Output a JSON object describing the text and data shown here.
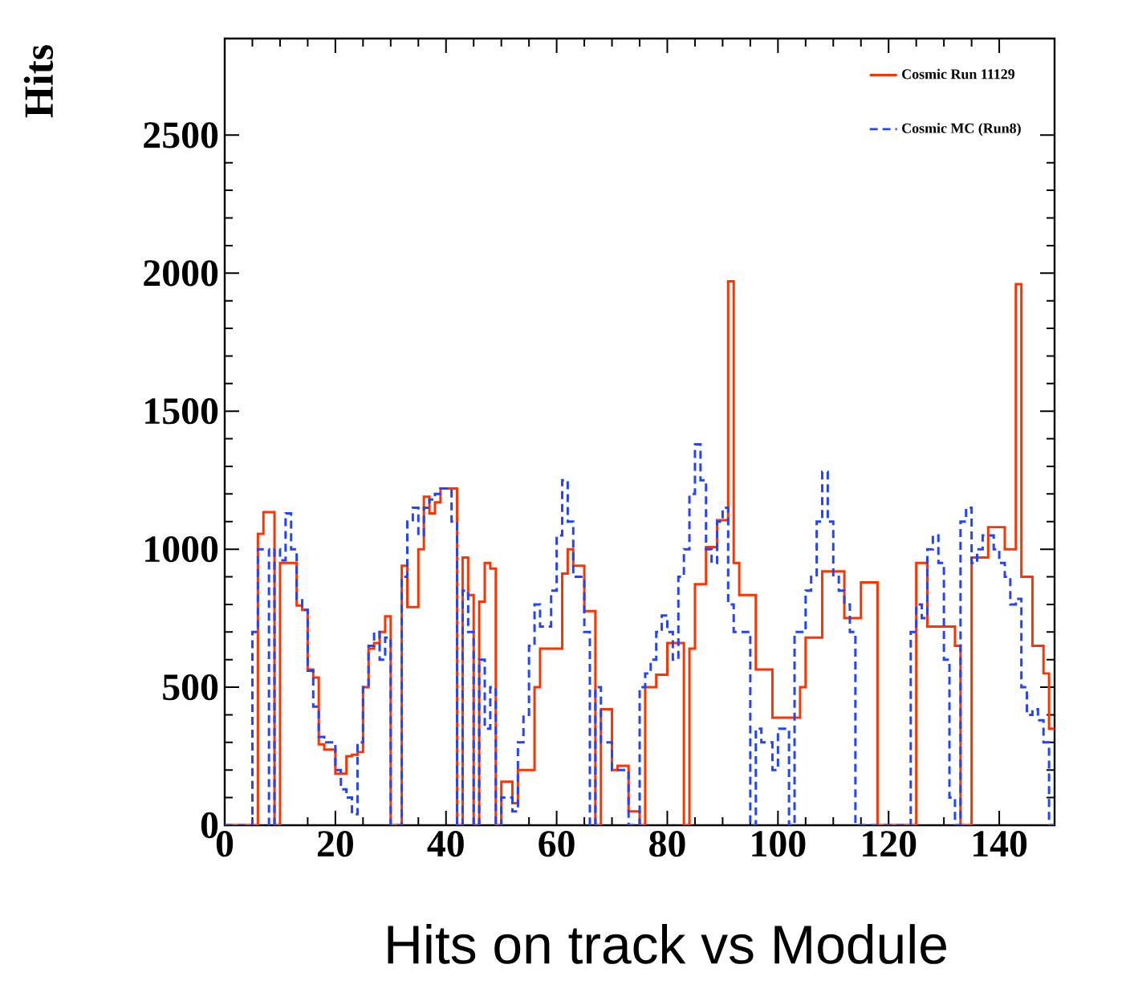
{
  "chart_data": {
    "type": "histogram",
    "title": "Hits on track vs Module",
    "ylabel": "Hits",
    "xlim": [
      0,
      150
    ],
    "ylim": [
      0,
      2850
    ],
    "xticks": [
      0,
      20,
      40,
      60,
      80,
      100,
      120,
      140
    ],
    "yticks": [
      0,
      500,
      1000,
      1500,
      2000,
      2500
    ],
    "grid": false,
    "legend": "top right",
    "bins": [
      0,
      1,
      2,
      3,
      4,
      5,
      6,
      7,
      8,
      9,
      10,
      11,
      12,
      13,
      14,
      15,
      16,
      17,
      18,
      19,
      20,
      21,
      22,
      23,
      24,
      25,
      26,
      27,
      28,
      29,
      30,
      31,
      32,
      33,
      34,
      35,
      36,
      37,
      38,
      39,
      40,
      41,
      42,
      43,
      44,
      45,
      46,
      47,
      48,
      49,
      50,
      51,
      52,
      53,
      54,
      55,
      56,
      57,
      58,
      59,
      60,
      61,
      62,
      63,
      64,
      65,
      66,
      67,
      68,
      69,
      70,
      71,
      72,
      73,
      74,
      75,
      76,
      77,
      78,
      79,
      80,
      81,
      82,
      83,
      84,
      85,
      86,
      87,
      88,
      89,
      90,
      91,
      92,
      93,
      94,
      95,
      96,
      97,
      98,
      99,
      100,
      101,
      102,
      103,
      104,
      105,
      106,
      107,
      108,
      109,
      110,
      111,
      112,
      113,
      114,
      115,
      116,
      117,
      118,
      119,
      120,
      121,
      122,
      123,
      124,
      125,
      126,
      127,
      128,
      129,
      130,
      131,
      132,
      133,
      134,
      135,
      136,
      137,
      138,
      139,
      140,
      141,
      142,
      143,
      144,
      145,
      146,
      147,
      148,
      149,
      150
    ],
    "series": [
      {
        "name": "Cosmic Run 11129",
        "color": "#ff3300",
        "line_style": "solid",
        "values": [
          0,
          0,
          0,
          0,
          0,
          0,
          1056,
          1134,
          1134,
          0,
          950,
          950,
          950,
          796,
          780,
          564,
          535,
          293,
          274,
          274,
          187,
          187,
          250,
          255,
          265,
          500,
          640,
          660,
          700,
          757,
          0,
          0,
          940,
          790,
          790,
          1000,
          1190,
          1130,
          1170,
          1220,
          1220,
          1220,
          0,
          970,
          834,
          0,
          810,
          950,
          930,
          0,
          158,
          158,
          80,
          200,
          200,
          200,
          500,
          640,
          640,
          640,
          640,
          912,
          1000,
          940,
          940,
          776,
          776,
          0,
          420,
          420,
          200,
          215,
          215,
          50,
          50,
          0,
          500,
          500,
          545,
          545,
          660,
          660,
          660,
          0,
          640,
          873,
          873,
          1008,
          1008,
          1105,
          1105,
          1970,
          950,
          834,
          834,
          834,
          564,
          564,
          564,
          390,
          390,
          390,
          390,
          390,
          500,
          680,
          680,
          680,
          920,
          920,
          920,
          920,
          750,
          750,
          750,
          880,
          880,
          880,
          0,
          0,
          0,
          0,
          0,
          0,
          0,
          950,
          950,
          720,
          720,
          720,
          720,
          720,
          650,
          0,
          0,
          970,
          970,
          970,
          1080,
          1080,
          1080,
          1000,
          1000,
          1960,
          900,
          900,
          650,
          650,
          550,
          350
        ]
      },
      {
        "name": "Cosmic MC (Run8)",
        "color": "#2244ff",
        "line_style": "dashed",
        "values": [
          0,
          0,
          0,
          0,
          0,
          700,
          1000,
          1000,
          0,
          1000,
          960,
          1130,
          1000,
          820,
          780,
          560,
          430,
          320,
          300,
          300,
          200,
          130,
          100,
          40,
          300,
          500,
          650,
          700,
          600,
          680,
          0,
          0,
          900,
          1100,
          1150,
          1050,
          1150,
          1180,
          1200,
          1220,
          1220,
          1100,
          0,
          850,
          700,
          0,
          600,
          350,
          500,
          0,
          100,
          100,
          50,
          300,
          400,
          650,
          800,
          720,
          720,
          850,
          1050,
          1250,
          1100,
          900,
          900,
          700,
          0,
          500,
          300,
          300,
          200,
          200,
          200,
          0,
          0,
          500,
          550,
          600,
          700,
          760,
          700,
          600,
          900,
          1000,
          1200,
          1380,
          1250,
          1000,
          950,
          1100,
          1150,
          800,
          700,
          700,
          700,
          0,
          350,
          300,
          300,
          200,
          350,
          350,
          0,
          700,
          700,
          850,
          900,
          1100,
          1280,
          1100,
          900,
          850,
          800,
          700,
          0,
          0,
          0,
          0,
          0,
          0,
          0,
          0,
          0,
          0,
          700,
          800,
          750,
          1000,
          1050,
          950,
          600,
          100,
          0,
          1100,
          1150,
          950,
          1000,
          1050,
          1050,
          1000,
          950,
          900,
          800,
          820,
          500,
          400,
          420,
          380,
          300,
          0
        ]
      }
    ]
  }
}
